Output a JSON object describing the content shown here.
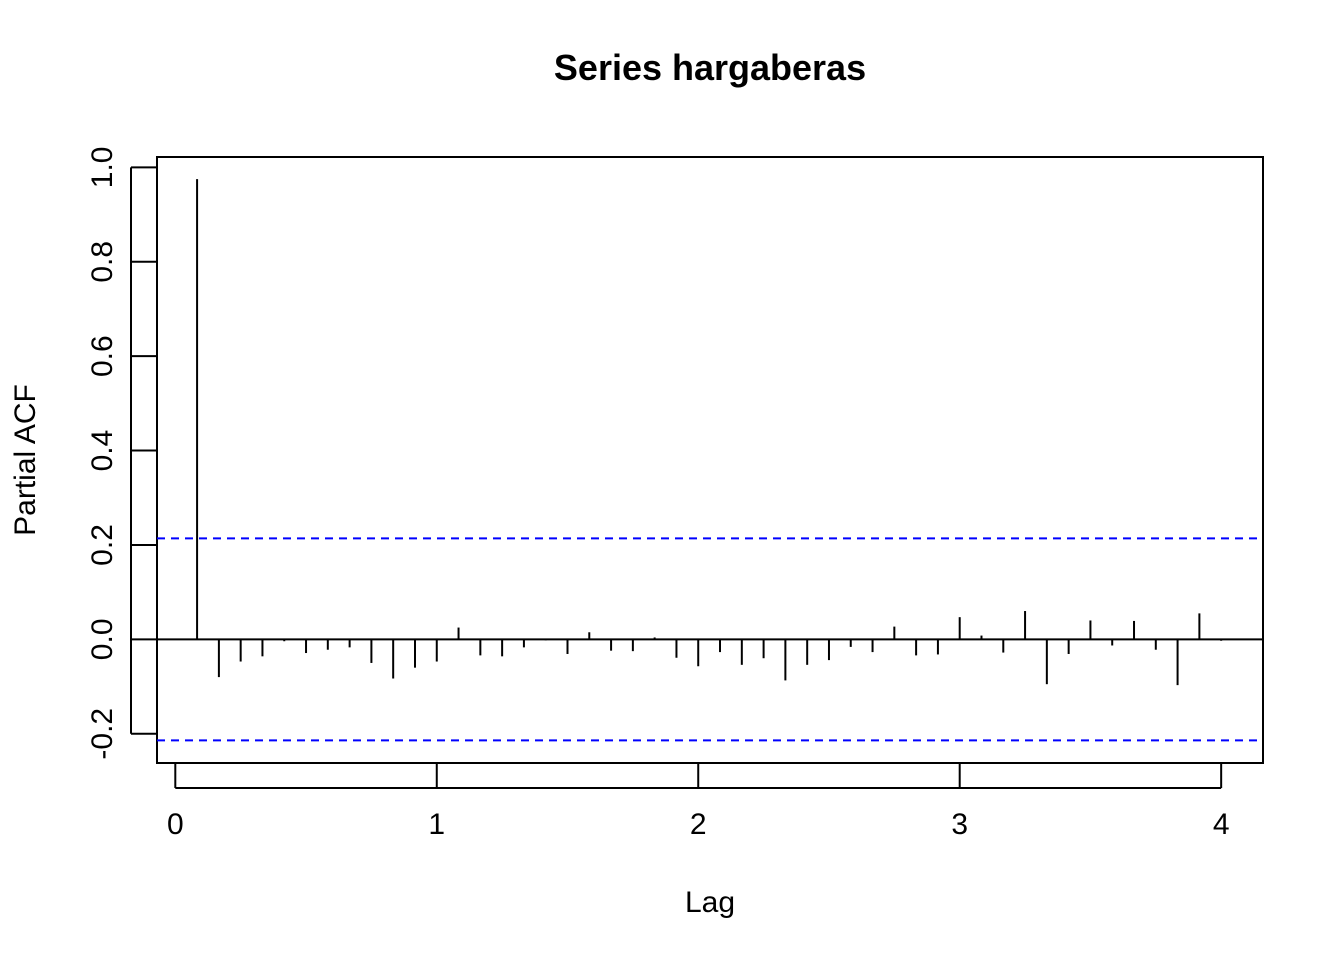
{
  "chart_data": {
    "type": "bar",
    "title": "Series  hargaberas",
    "xlabel": "Lag",
    "ylabel": "Partial ACF",
    "xlim": [
      -0.07,
      4.16
    ],
    "ylim": [
      -0.262,
      1.022
    ],
    "x_ticks": [
      "0",
      "1",
      "2",
      "3",
      "4"
    ],
    "y_ticks": [
      "-0.2",
      "0.0",
      "0.2",
      "0.4",
      "0.6",
      "0.8",
      "1.0"
    ],
    "confidence_bound": 0.214,
    "confidence_color": "#0000ff",
    "lags": [
      0.0833,
      0.1667,
      0.25,
      0.3333,
      0.4167,
      0.5,
      0.5833,
      0.6667,
      0.75,
      0.8333,
      0.9167,
      1.0,
      1.0833,
      1.1667,
      1.25,
      1.3333,
      1.4167,
      1.5,
      1.5833,
      1.6667,
      1.75,
      1.8333,
      1.9167,
      2.0,
      2.0833,
      2.1667,
      2.25,
      2.3333,
      2.4167,
      2.5,
      2.5833,
      2.6667,
      2.75,
      2.8333,
      2.9167,
      3.0,
      3.0833,
      3.1667,
      3.25,
      3.3333,
      3.4167,
      3.5,
      3.5833,
      3.6667,
      3.75,
      3.8333,
      3.9167,
      4.0
    ],
    "values": [
      0.975,
      -0.08,
      -0.047,
      -0.036,
      -0.004,
      -0.029,
      -0.022,
      -0.017,
      -0.05,
      -0.083,
      -0.06,
      -0.047,
      0.025,
      -0.034,
      -0.036,
      -0.017,
      -0.002,
      -0.031,
      0.015,
      -0.024,
      -0.025,
      0.004,
      -0.039,
      -0.057,
      -0.027,
      -0.054,
      -0.04,
      -0.087,
      -0.054,
      -0.044,
      -0.016,
      -0.027,
      0.027,
      -0.034,
      -0.032,
      0.047,
      0.008,
      -0.028,
      0.06,
      -0.095,
      -0.031,
      0.04,
      -0.013,
      0.039,
      -0.022,
      -0.097,
      0.055,
      -0.003
    ]
  }
}
